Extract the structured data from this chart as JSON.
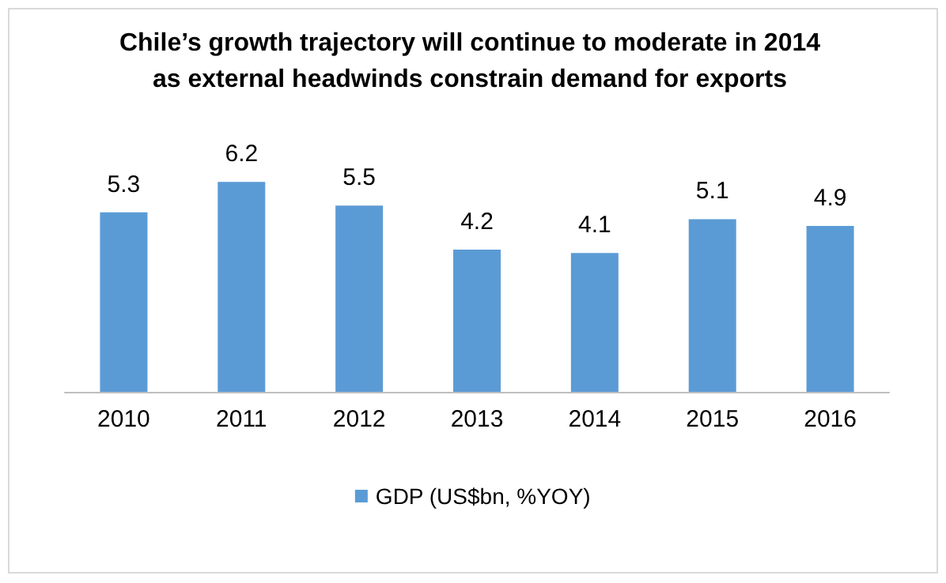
{
  "chart_data": {
    "type": "bar",
    "title": "Chile’s growth trajectory will continue to moderate in 2014 as external headwinds constrain demand for exports",
    "categories": [
      "2010",
      "2011",
      "2012",
      "2013",
      "2014",
      "2015",
      "2016"
    ],
    "series": [
      {
        "name": "GDP (US$bn, %YOY)",
        "color": "#5b9bd5",
        "values": [
          5.3,
          6.2,
          5.5,
          4.2,
          4.1,
          5.1,
          4.9
        ]
      }
    ],
    "data_labels": true,
    "tick_labels": "x",
    "grid": false,
    "legend": "bottom"
  }
}
